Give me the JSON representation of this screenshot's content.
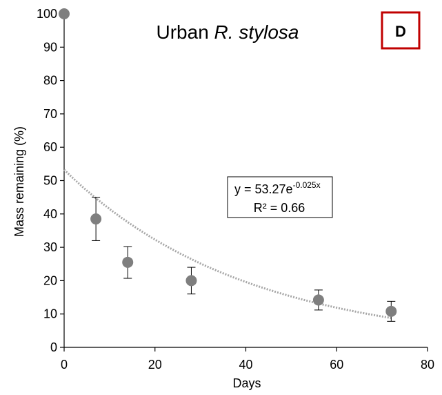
{
  "chart_data": {
    "type": "scatter",
    "title_plain": "Urban ",
    "title_italic": "R. stylosa",
    "panel_label": "D",
    "xlabel": "Days",
    "ylabel": "Mass remaining (%)",
    "xlim": [
      0,
      80
    ],
    "ylim": [
      0,
      100
    ],
    "xticks": [
      "0",
      "20",
      "40",
      "60",
      "80"
    ],
    "yticks": [
      "0",
      "10",
      "20",
      "30",
      "40",
      "50",
      "60",
      "70",
      "80",
      "90",
      "100"
    ],
    "grid": false,
    "points": [
      {
        "x": 0,
        "y": 100,
        "err_low": 0,
        "err_high": 0
      },
      {
        "x": 7,
        "y": 38.5,
        "err_low": 6.5,
        "err_high": 6.5
      },
      {
        "x": 14,
        "y": 25.5,
        "err_low": 4.8,
        "err_high": 4.7
      },
      {
        "x": 28,
        "y": 20,
        "err_low": 4.0,
        "err_high": 4.0
      },
      {
        "x": 56,
        "y": 14.2,
        "err_low": 3.0,
        "err_high": 3.0
      },
      {
        "x": 72,
        "y": 10.8,
        "err_low": 3.0,
        "err_high": 3.0
      }
    ],
    "trendline": {
      "type": "exponential",
      "a": 53.27,
      "b": -0.025,
      "x_range": [
        0,
        72
      ],
      "equation_main": "y = 53.27e",
      "equation_exponent": "-0.025x",
      "r_squared": "R² = 0.66"
    },
    "colors": {
      "marker": "#7f7f7f",
      "trendline": "#a6a6a6",
      "axis": "#000000",
      "panel_border": "#c00000"
    }
  }
}
